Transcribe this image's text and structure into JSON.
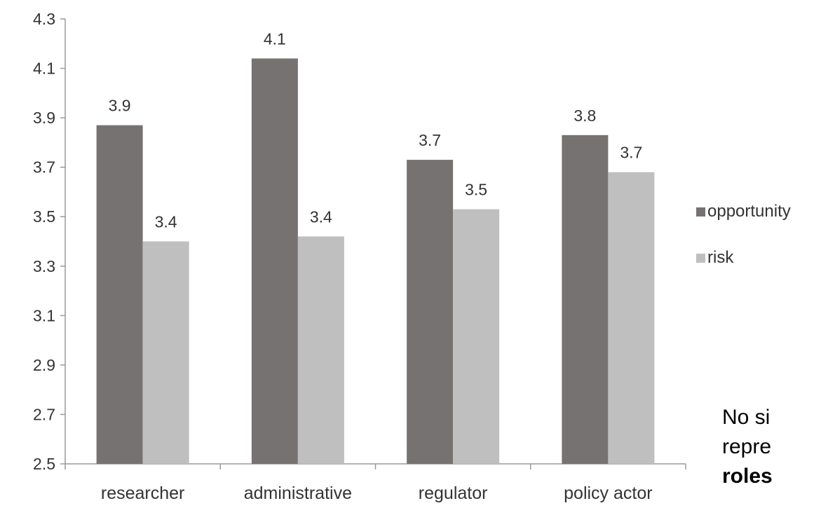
{
  "chart_data": {
    "type": "bar",
    "categories": [
      "researcher",
      "administrative",
      "regulator",
      "policy actor"
    ],
    "series": [
      {
        "name": "opportunity",
        "values": [
          3.87,
          4.14,
          3.73,
          3.83
        ],
        "labels": [
          "3.9",
          "4.1",
          "3.7",
          "3.8"
        ],
        "color": "#767272"
      },
      {
        "name": "risk",
        "values": [
          3.4,
          3.42,
          3.53,
          3.68
        ],
        "labels": [
          "3.4",
          "3.4",
          "3.5",
          "3.7"
        ],
        "color": "#bfbfbf"
      }
    ],
    "ylim": [
      2.5,
      4.3
    ],
    "yticks": [
      "2.5",
      "2.7",
      "2.9",
      "3.1",
      "3.3",
      "3.5",
      "3.7",
      "3.9",
      "4.1",
      "4.3"
    ],
    "legend_position": "right",
    "grid": false
  },
  "side_note": {
    "line1": "No si",
    "line2": "repre",
    "line3": "roles"
  }
}
